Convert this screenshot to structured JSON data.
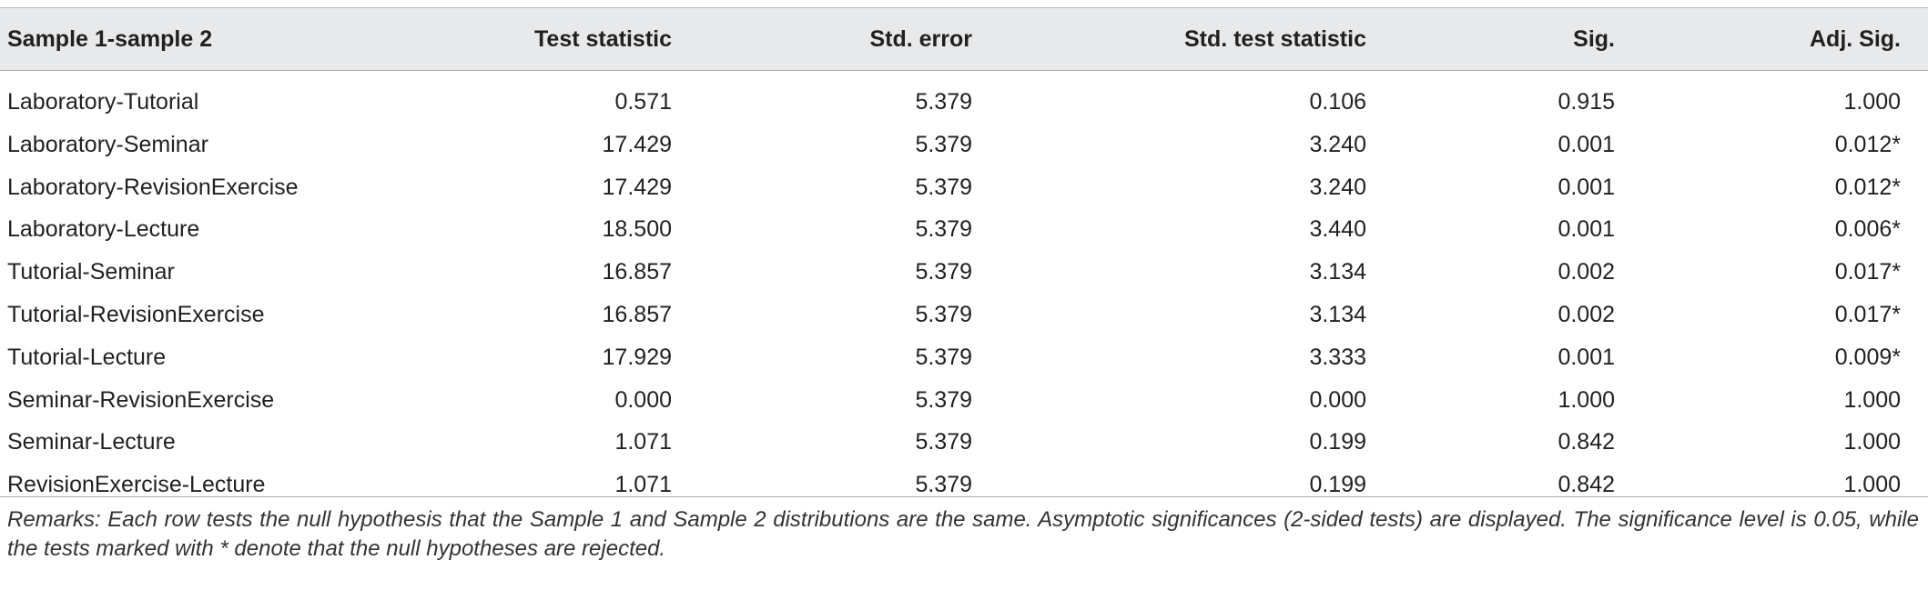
{
  "table": {
    "header": [
      "Sample 1-sample 2",
      "Test statistic",
      "Std. error",
      "Std. test statistic",
      "Sig.",
      "Adj. Sig."
    ],
    "rows": [
      [
        "Laboratory-Tutorial",
        "0.571",
        "5.379",
        "0.106",
        "0.915",
        "1.000"
      ],
      [
        "Laboratory-Seminar",
        "17.429",
        "5.379",
        "3.240",
        "0.001",
        "0.012*"
      ],
      [
        "Laboratory-RevisionExercise",
        "17.429",
        "5.379",
        "3.240",
        "0.001",
        "0.012*"
      ],
      [
        "Laboratory-Lecture",
        "18.500",
        "5.379",
        "3.440",
        "0.001",
        "0.006*"
      ],
      [
        "Tutorial-Seminar",
        "16.857",
        "5.379",
        "3.134",
        "0.002",
        "0.017*"
      ],
      [
        "Tutorial-RevisionExercise",
        "16.857",
        "5.379",
        "3.134",
        "0.002",
        "0.017*"
      ],
      [
        "Tutorial-Lecture",
        "17.929",
        "5.379",
        "3.333",
        "0.001",
        "0.009*"
      ],
      [
        "Seminar-RevisionExercise",
        "0.000",
        "5.379",
        "0.000",
        "1.000",
        "1.000"
      ],
      [
        "Seminar-Lecture",
        "1.071",
        "5.379",
        "0.199",
        "0.842",
        "1.000"
      ],
      [
        "RevisionExercise-Lecture",
        "1.071",
        "5.379",
        "0.199",
        "0.842",
        "1.000"
      ]
    ]
  },
  "remarks": "Remarks: Each row tests the null hypothesis that the Sample 1 and Sample 2 distributions are the same. Asymptotic significances (2-sided tests) are displayed. The significance level is 0.05, while the tests marked with * denote that the null hypotheses are rejected."
}
